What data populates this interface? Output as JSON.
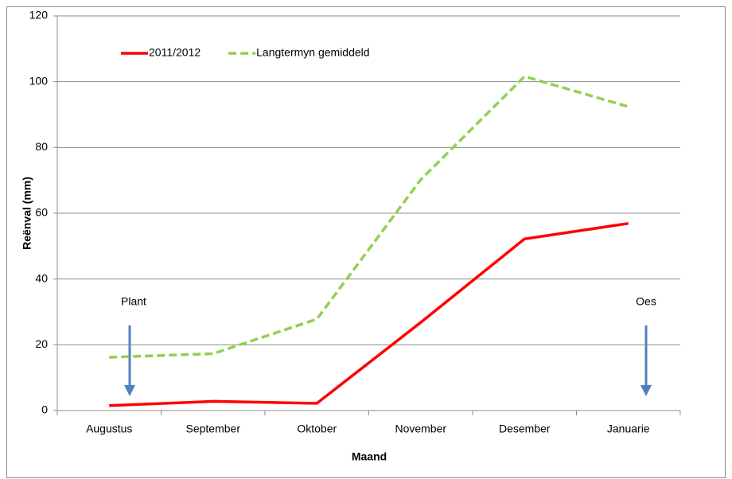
{
  "chart_data": {
    "type": "line",
    "categories": [
      "Augustus",
      "September",
      "Oktober",
      "November",
      "Desember",
      "Januarie"
    ],
    "series": [
      {
        "name": "2011/2012",
        "color": "#ff0000",
        "dashed": false,
        "values": [
          1.5,
          2.8,
          2.2,
          26.8,
          52.2,
          56.9
        ]
      },
      {
        "name": "Langtermyn gemiddeld",
        "color": "#92d050",
        "dashed": true,
        "values": [
          16.2,
          17.3,
          27.8,
          70.2,
          101.6,
          92.4
        ]
      }
    ],
    "xlabel": "Maand",
    "ylabel": "Reënval (mm)",
    "ylim": [
      0,
      120
    ],
    "yticks": [
      0,
      20,
      40,
      60,
      80,
      100,
      120
    ],
    "grid": true,
    "legend": "top-left",
    "annotations": [
      "Plant",
      "Oes"
    ]
  }
}
